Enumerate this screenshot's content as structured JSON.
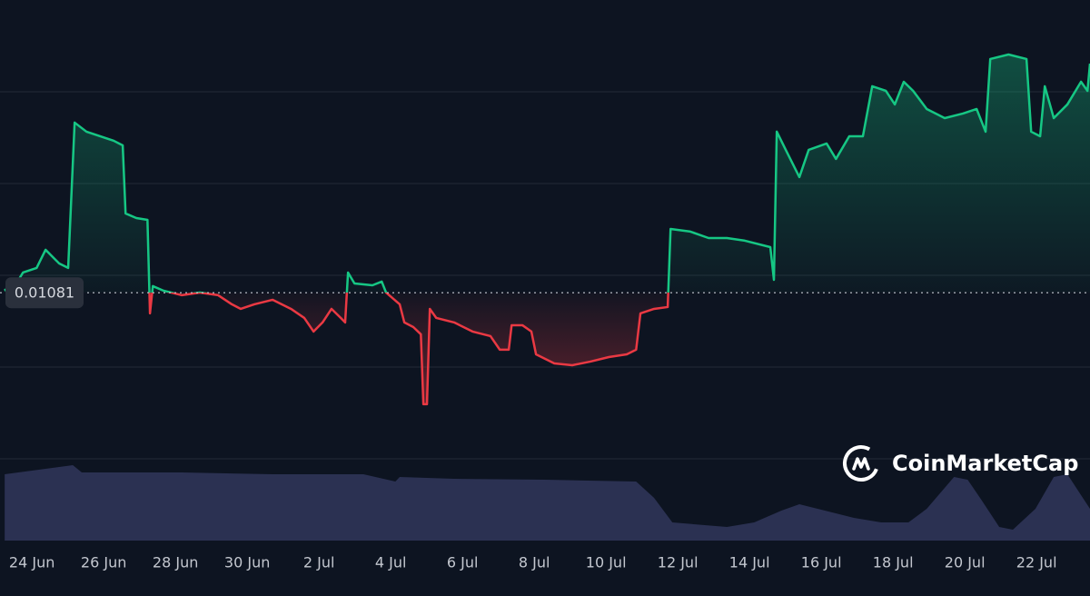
{
  "chart_data": {
    "type": "line",
    "x": [
      -0.76,
      -0.63,
      -0.25,
      0.13,
      0.38,
      0.63,
      0.76,
      1.01,
      1.19,
      1.52,
      1.9,
      2.28,
      2.53,
      2.61,
      2.91,
      3.22,
      3.29,
      3.37,
      3.67,
      4.18,
      4.68,
      5.19,
      5.57,
      5.82,
      6.2,
      6.71,
      7.22,
      7.59,
      7.85,
      8.1,
      8.35,
      8.61,
      8.73,
      8.81,
      8.99,
      9.49,
      9.75,
      9.87,
      10.25,
      10.38,
      10.63,
      10.84,
      10.91,
      11.01,
      11.09,
      11.27,
      11.77,
      12.28,
      12.78,
      13.04,
      13.29,
      13.37,
      13.67,
      13.92,
      14.05,
      14.56,
      15.06,
      15.57,
      16.08,
      16.58,
      16.84,
      16.96,
      17.34,
      17.72,
      17.8,
      18.35,
      18.86,
      19.37,
      19.87,
      20.58,
      20.68,
      20.76,
      21.01,
      21.39,
      21.65,
      22.15,
      22.41,
      22.78,
      23.16,
      23.42,
      23.8,
      24.05,
      24.3,
      24.56,
      24.94,
      25.44,
      25.95,
      26.33,
      26.58,
      26.71,
      27.22,
      27.72,
      27.85,
      28.1,
      28.23,
      28.48,
      28.86,
      29.24,
      29.42,
      29.49
    ],
    "values": [
      0.010852,
      0.010783,
      0.01103,
      0.01108,
      0.011278,
      0.011179,
      0.011129,
      0.01108,
      0.012664,
      0.012565,
      0.012515,
      0.012466,
      0.012416,
      0.011674,
      0.011624,
      0.011604,
      0.010585,
      0.010882,
      0.010832,
      0.010783,
      0.010812,
      0.010783,
      0.010684,
      0.010634,
      0.010684,
      0.010733,
      0.010634,
      0.010535,
      0.010387,
      0.010486,
      0.010634,
      0.010535,
      0.010486,
      0.01103,
      0.010911,
      0.010891,
      0.010931,
      0.010812,
      0.010684,
      0.010486,
      0.010436,
      0.010357,
      0.009595,
      0.009595,
      0.010634,
      0.010535,
      0.010486,
      0.010387,
      0.010337,
      0.010189,
      0.010189,
      0.010456,
      0.010456,
      0.010387,
      0.010139,
      0.01004,
      0.01002,
      0.01006,
      0.010109,
      0.010139,
      0.010189,
      0.010585,
      0.010634,
      0.010654,
      0.011505,
      0.011476,
      0.011406,
      0.011406,
      0.011377,
      0.011307,
      0.010951,
      0.012565,
      0.012367,
      0.01207,
      0.012367,
      0.012436,
      0.012268,
      0.012515,
      0.012515,
      0.01306,
      0.01301,
      0.012862,
      0.013109,
      0.01301,
      0.012812,
      0.012713,
      0.012763,
      0.012812,
      0.012565,
      0.013357,
      0.013406,
      0.013357,
      0.012565,
      0.012515,
      0.01306,
      0.012713,
      0.012862,
      0.013109,
      0.01301,
      0.013307
    ],
    "baseline": 0.01081,
    "xlim": [
      -0.89,
      29.49
    ],
    "xticks": [
      {
        "value": 0,
        "label": "24 Jun"
      },
      {
        "value": 2,
        "label": "26 Jun"
      },
      {
        "value": 4,
        "label": "28 Jun"
      },
      {
        "value": 6,
        "label": "30 Jun"
      },
      {
        "value": 8,
        "label": "2 Jul"
      },
      {
        "value": 10,
        "label": "4 Jul"
      },
      {
        "value": 12,
        "label": "6 Jul"
      },
      {
        "value": 14,
        "label": "8 Jul"
      },
      {
        "value": 16,
        "label": "10 Jul"
      },
      {
        "value": 18,
        "label": "12 Jul"
      },
      {
        "value": 20,
        "label": "14 Jul"
      },
      {
        "value": 22,
        "label": "16 Jul"
      },
      {
        "value": 24,
        "label": "18 Jul"
      },
      {
        "value": 26,
        "label": "20 Jul"
      },
      {
        "value": 28,
        "label": "22 Jul"
      }
    ],
    "ylim": [
      0.009,
      0.014
    ],
    "yticks": [
      0.009,
      0.01,
      0.011,
      0.012,
      0.013
    ],
    "grid": true,
    "up_color": "#16c784",
    "down_color": "#ea3943",
    "volume": {
      "x": [
        -0.76,
        1.14,
        1.39,
        4.18,
        6.71,
        9.24,
        10.13,
        10.25,
        11.77,
        14.3,
        16.84,
        17.34,
        17.85,
        19.37,
        20.13,
        20.89,
        21.39,
        21.9,
        22.91,
        23.67,
        24.43,
        24.94,
        25.7,
        26.08,
        26.46,
        26.96,
        27.34,
        27.97,
        28.48,
        28.86,
        29.24,
        29.49
      ],
      "values": [
        73,
        83,
        75,
        75,
        73,
        73,
        65,
        70,
        68,
        67,
        65,
        47,
        20,
        15,
        20,
        33,
        40,
        35,
        25,
        20,
        20,
        35,
        70,
        67,
        45,
        15,
        12,
        35,
        70,
        73,
        50,
        35
      ],
      "color": "#2b3152"
    },
    "y2lim": [
      0,
      100
    ],
    "watermark": "CoinMarketCap"
  }
}
